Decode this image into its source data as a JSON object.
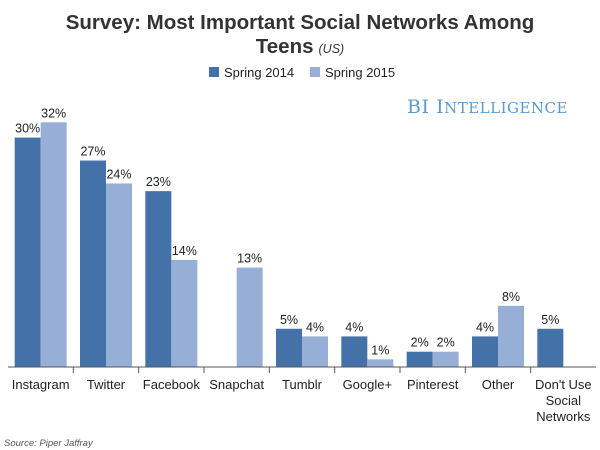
{
  "chart_data": {
    "type": "bar",
    "title": "Survey: Most Important Social Networks Among",
    "title_line2": "Teens",
    "title_suffix": "(US)",
    "categories": [
      "Instagram",
      "Twitter",
      "Facebook",
      "Snapchat",
      "Tumblr",
      "Google+",
      "Pinterest",
      "Other",
      "Don't Use Social Networks"
    ],
    "category_lines": [
      [
        "Instagram"
      ],
      [
        "Twitter"
      ],
      [
        "Facebook"
      ],
      [
        "Snapchat"
      ],
      [
        "Tumblr"
      ],
      [
        "Google+"
      ],
      [
        "Pinterest"
      ],
      [
        "Other"
      ],
      [
        "Don't Use",
        "Social",
        "Networks"
      ]
    ],
    "series": [
      {
        "name": "Spring 2014",
        "color": "#4472a8",
        "values": [
          30,
          27,
          23,
          null,
          5,
          4,
          2,
          4,
          5
        ]
      },
      {
        "name": "Spring 2015",
        "color": "#97afd6",
        "values": [
          32,
          24,
          14,
          13,
          4,
          1,
          2,
          8,
          null
        ]
      }
    ],
    "value_suffix": "%",
    "xlabel": "",
    "ylabel": "",
    "ylim": [
      0,
      34
    ],
    "grid": false,
    "legend": "top-center"
  },
  "branding": {
    "text": "BI Intelligence",
    "color": "#5b9bd5"
  },
  "source": "Source: Piper Jaffray"
}
